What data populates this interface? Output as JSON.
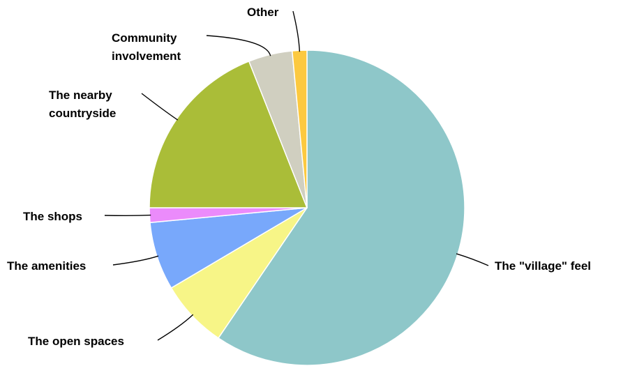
{
  "chart_data": {
    "type": "pie",
    "title": "",
    "categories": [
      "The \"village\" feel",
      "The open spaces",
      "The amenities",
      "The shops",
      "The nearby countryside",
      "Community involvement",
      "Other"
    ],
    "values": [
      59.5,
      7.0,
      7.0,
      1.5,
      19.0,
      4.5,
      1.5
    ],
    "colors": [
      "#8ec7c9",
      "#f7f587",
      "#78a8fb",
      "#eb8bfb",
      "#aabd38",
      "#d0cfc0",
      "#fcc940"
    ],
    "start_angle_deg": 0,
    "direction": "clockwise",
    "legend": "none (labels with leader lines)"
  }
}
